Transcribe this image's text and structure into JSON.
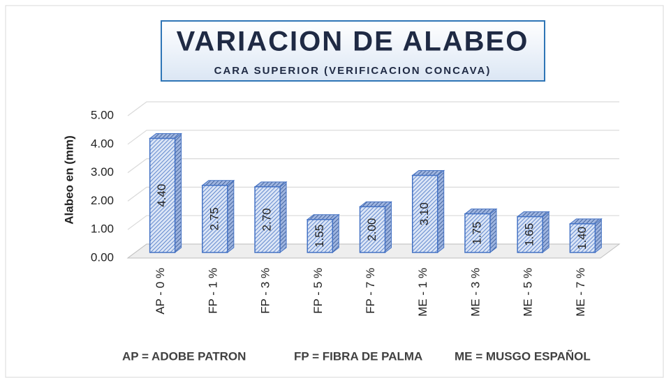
{
  "chart_data": {
    "type": "bar3d",
    "title": "VARIACION DE ALABEO",
    "subtitle": "CARA SUPERIOR (VERIFICACION CONCAVA)",
    "y_axis_label": "Alabeo en (mm)",
    "categories": [
      "AP - 0 %",
      "FP - 1 %",
      "FP - 3 %",
      "FP - 5 %",
      "FP - 7 %",
      "ME - 1 %",
      "ME - 3 %",
      "ME - 5 %",
      "ME - 7 %"
    ],
    "values": [
      4.4,
      2.75,
      2.7,
      1.55,
      2.0,
      3.1,
      1.75,
      1.65,
      1.4
    ],
    "value_labels": [
      "4.40",
      "2.75",
      "2.70",
      "1.55",
      "2.00",
      "3.10",
      "1.75",
      "1.65",
      "1.40"
    ],
    "color": "#4472c4",
    "ylim": [
      0,
      5
    ],
    "yticks": [
      {
        "value": 0,
        "label": "0.00"
      },
      {
        "value": 1,
        "label": "1.00"
      },
      {
        "value": 2,
        "label": "2.00"
      },
      {
        "value": 3,
        "label": "3.00"
      },
      {
        "value": 4,
        "label": "4.00"
      },
      {
        "value": 5,
        "label": "5.00"
      }
    ],
    "grid": true,
    "annotations": [
      "AP = ADOBE PATRON",
      "FP = FIBRA DE PALMA",
      "ME = MUSGO ESPAÑOL"
    ]
  }
}
